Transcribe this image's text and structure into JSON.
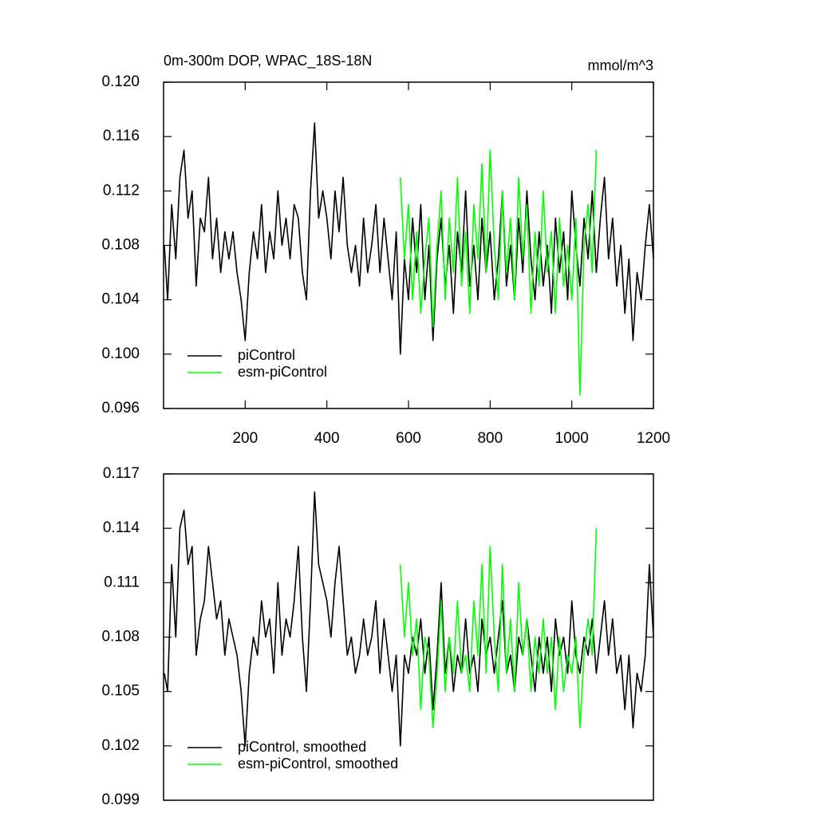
{
  "chart_data": [
    {
      "type": "line",
      "title": "0m-300m DOP, WPAC_18S-18N",
      "units": "mmol/m^3",
      "xlim": [
        0,
        1200
      ],
      "xticks": [
        200,
        400,
        600,
        800,
        1000,
        1200
      ],
      "ylim": [
        0.096,
        0.12
      ],
      "yticks": [
        0.096,
        {
          "value": 0.1,
          "label": "0.100"
        },
        0.104,
        0.108,
        0.112,
        0.116,
        {
          "value": 0.12,
          "label": "0.120"
        }
      ],
      "legend": "lower left",
      "series": [
        {
          "name": "piControl",
          "color": "#000000",
          "x": [
            2,
            10,
            20,
            30,
            40,
            50,
            60,
            70,
            80,
            90,
            100,
            110,
            120,
            130,
            140,
            150,
            160,
            170,
            180,
            190,
            200,
            210,
            220,
            230,
            240,
            250,
            260,
            270,
            280,
            290,
            300,
            310,
            320,
            330,
            340,
            350,
            360,
            370,
            380,
            390,
            400,
            410,
            420,
            430,
            440,
            450,
            460,
            470,
            480,
            490,
            500,
            510,
            520,
            530,
            540,
            550,
            560,
            570,
            580,
            590,
            600,
            610,
            620,
            630,
            640,
            650,
            660,
            670,
            680,
            690,
            700,
            710,
            720,
            730,
            740,
            750,
            760,
            770,
            780,
            790,
            800,
            810,
            820,
            830,
            840,
            850,
            860,
            870,
            880,
            890,
            900,
            910,
            920,
            930,
            940,
            950,
            960,
            970,
            980,
            990,
            1000,
            1010,
            1020,
            1030,
            1040,
            1050,
            1060,
            1070,
            1080,
            1090,
            1100,
            1110,
            1120,
            1130,
            1140,
            1150,
            1160,
            1170,
            1180,
            1190,
            1200
          ],
          "values": [
            0.108,
            0.104,
            0.111,
            0.107,
            0.113,
            0.115,
            0.11,
            0.112,
            0.105,
            0.11,
            0.109,
            0.113,
            0.107,
            0.11,
            0.106,
            0.109,
            0.107,
            0.109,
            0.106,
            0.104,
            0.101,
            0.106,
            0.109,
            0.107,
            0.111,
            0.106,
            0.109,
            0.107,
            0.112,
            0.108,
            0.11,
            0.107,
            0.111,
            0.11,
            0.106,
            0.104,
            0.112,
            0.117,
            0.11,
            0.112,
            0.11,
            0.107,
            0.112,
            0.109,
            0.113,
            0.108,
            0.106,
            0.108,
            0.105,
            0.11,
            0.106,
            0.108,
            0.111,
            0.106,
            0.11,
            0.107,
            0.104,
            0.109,
            0.1,
            0.107,
            0.104,
            0.11,
            0.106,
            0.111,
            0.104,
            0.108,
            0.101,
            0.107,
            0.11,
            0.105,
            0.108,
            0.103,
            0.109,
            0.106,
            0.112,
            0.105,
            0.108,
            0.104,
            0.11,
            0.106,
            0.109,
            0.104,
            0.107,
            0.112,
            0.105,
            0.108,
            0.104,
            0.11,
            0.106,
            0.112,
            0.107,
            0.104,
            0.109,
            0.105,
            0.108,
            0.103,
            0.11,
            0.106,
            0.109,
            0.104,
            0.112,
            0.108,
            0.105,
            0.11,
            0.107,
            0.112,
            0.106,
            0.11,
            0.113,
            0.107,
            0.11,
            0.105,
            0.108,
            0.103,
            0.107,
            0.101,
            0.106,
            0.104,
            0.108,
            0.111,
            0.107
          ]
        },
        {
          "name": "esm-piControl",
          "color": "#00ff00",
          "x": [
            580,
            590,
            600,
            610,
            620,
            630,
            640,
            650,
            660,
            670,
            680,
            690,
            700,
            710,
            720,
            730,
            740,
            750,
            760,
            770,
            780,
            790,
            800,
            810,
            820,
            830,
            840,
            850,
            860,
            870,
            880,
            890,
            900,
            910,
            920,
            930,
            940,
            950,
            960,
            970,
            980,
            990,
            1000,
            1010,
            1020,
            1030,
            1040,
            1050,
            1060
          ],
          "values": [
            0.113,
            0.107,
            0.111,
            0.104,
            0.109,
            0.103,
            0.107,
            0.11,
            0.102,
            0.108,
            0.112,
            0.104,
            0.11,
            0.106,
            0.113,
            0.105,
            0.109,
            0.103,
            0.111,
            0.107,
            0.114,
            0.106,
            0.115,
            0.108,
            0.104,
            0.112,
            0.106,
            0.11,
            0.104,
            0.113,
            0.107,
            0.111,
            0.103,
            0.109,
            0.105,
            0.112,
            0.106,
            0.109,
            0.103,
            0.11,
            0.105,
            0.108,
            0.104,
            0.11,
            0.097,
            0.108,
            0.111,
            0.106,
            0.115
          ]
        }
      ]
    },
    {
      "type": "line",
      "xlim": [
        0,
        1200
      ],
      "ylim": [
        0.099,
        0.117
      ],
      "yticks": [
        0.099,
        0.102,
        0.105,
        0.108,
        0.111,
        0.114,
        0.117
      ],
      "legend": "lower left",
      "series": [
        {
          "name": "piControl, smoothed",
          "color": "#000000",
          "x": [
            2,
            10,
            20,
            30,
            40,
            50,
            60,
            70,
            80,
            90,
            100,
            110,
            120,
            130,
            140,
            150,
            160,
            170,
            180,
            190,
            200,
            210,
            220,
            230,
            240,
            250,
            260,
            270,
            280,
            290,
            300,
            310,
            320,
            330,
            340,
            350,
            360,
            370,
            380,
            390,
            400,
            410,
            420,
            430,
            440,
            450,
            460,
            470,
            480,
            490,
            500,
            510,
            520,
            530,
            540,
            550,
            560,
            570,
            580,
            590,
            600,
            610,
            620,
            630,
            640,
            650,
            660,
            670,
            680,
            690,
            700,
            710,
            720,
            730,
            740,
            750,
            760,
            770,
            780,
            790,
            800,
            810,
            820,
            830,
            840,
            850,
            860,
            870,
            880,
            890,
            900,
            910,
            920,
            930,
            940,
            950,
            960,
            970,
            980,
            990,
            1000,
            1010,
            1020,
            1030,
            1040,
            1050,
            1060,
            1070,
            1080,
            1090,
            1100,
            1110,
            1120,
            1130,
            1140,
            1150,
            1160,
            1170,
            1180,
            1190,
            1200
          ],
          "values": [
            0.106,
            0.105,
            0.112,
            0.108,
            0.114,
            0.115,
            0.112,
            0.113,
            0.107,
            0.109,
            0.11,
            0.113,
            0.111,
            0.109,
            0.11,
            0.107,
            0.109,
            0.108,
            0.107,
            0.105,
            0.102,
            0.106,
            0.108,
            0.107,
            0.11,
            0.108,
            0.109,
            0.106,
            0.111,
            0.107,
            0.109,
            0.108,
            0.11,
            0.113,
            0.108,
            0.105,
            0.11,
            0.116,
            0.112,
            0.111,
            0.11,
            0.108,
            0.111,
            0.113,
            0.11,
            0.107,
            0.108,
            0.106,
            0.107,
            0.109,
            0.107,
            0.108,
            0.11,
            0.106,
            0.109,
            0.107,
            0.105,
            0.107,
            0.102,
            0.107,
            0.106,
            0.108,
            0.107,
            0.109,
            0.106,
            0.108,
            0.104,
            0.107,
            0.111,
            0.106,
            0.108,
            0.105,
            0.107,
            0.106,
            0.109,
            0.106,
            0.107,
            0.105,
            0.109,
            0.107,
            0.108,
            0.106,
            0.108,
            0.11,
            0.106,
            0.107,
            0.105,
            0.108,
            0.107,
            0.109,
            0.107,
            0.105,
            0.108,
            0.106,
            0.108,
            0.105,
            0.109,
            0.107,
            0.108,
            0.106,
            0.11,
            0.107,
            0.106,
            0.108,
            0.107,
            0.109,
            0.106,
            0.108,
            0.11,
            0.107,
            0.109,
            0.106,
            0.107,
            0.104,
            0.107,
            0.103,
            0.106,
            0.105,
            0.107,
            0.112,
            0.108
          ]
        },
        {
          "name": "esm-piControl, smoothed",
          "color": "#00ff00",
          "x": [
            580,
            590,
            600,
            610,
            620,
            630,
            640,
            650,
            660,
            670,
            680,
            690,
            700,
            710,
            720,
            730,
            740,
            750,
            760,
            770,
            780,
            790,
            800,
            810,
            820,
            830,
            840,
            850,
            860,
            870,
            880,
            890,
            900,
            910,
            920,
            930,
            940,
            950,
            960,
            970,
            980,
            990,
            1000,
            1010,
            1020,
            1030,
            1040,
            1050,
            1060
          ],
          "values": [
            0.112,
            0.108,
            0.111,
            0.107,
            0.109,
            0.104,
            0.108,
            0.107,
            0.103,
            0.106,
            0.11,
            0.105,
            0.108,
            0.106,
            0.11,
            0.106,
            0.107,
            0.105,
            0.11,
            0.107,
            0.112,
            0.106,
            0.113,
            0.108,
            0.105,
            0.112,
            0.106,
            0.109,
            0.105,
            0.111,
            0.107,
            0.109,
            0.105,
            0.108,
            0.106,
            0.109,
            0.106,
            0.108,
            0.104,
            0.108,
            0.105,
            0.107,
            0.106,
            0.108,
            0.103,
            0.107,
            0.109,
            0.107,
            0.114
          ]
        }
      ]
    }
  ]
}
